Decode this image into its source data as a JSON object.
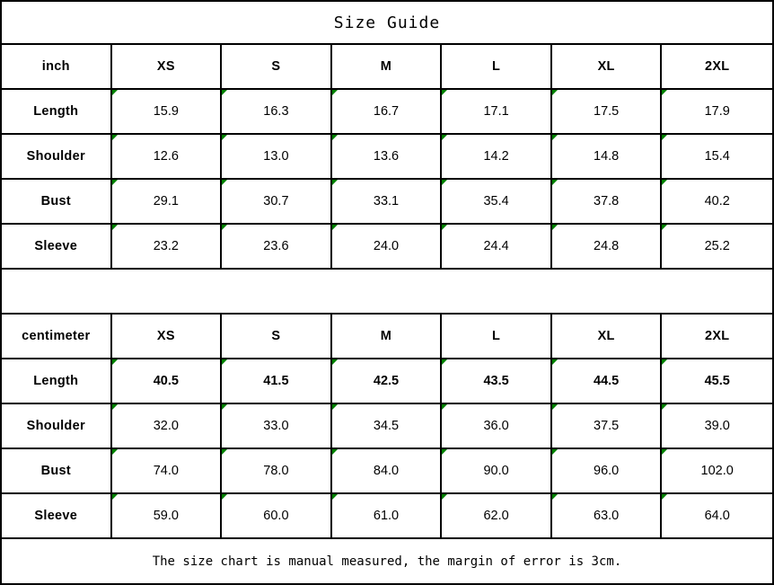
{
  "title": "Size Guide",
  "footer_note": "The size chart is manual measured, the margin of error is 3cm.",
  "colors": {
    "border": "#000000",
    "cell_flag_green": "#008000",
    "background": "#ffffff",
    "text": "#000000"
  },
  "tables": [
    {
      "unit": "inch",
      "sizes": [
        "XS",
        "S",
        "M",
        "L",
        "XL",
        "2XL"
      ],
      "rows": [
        {
          "label": "Length",
          "values": [
            "15.9",
            "16.3",
            "16.7",
            "17.1",
            "17.5",
            "17.9"
          ]
        },
        {
          "label": "Shoulder",
          "values": [
            "12.6",
            "13.0",
            "13.6",
            "14.2",
            "14.8",
            "15.4"
          ]
        },
        {
          "label": "Bust",
          "values": [
            "29.1",
            "30.7",
            "33.1",
            "35.4",
            "37.8",
            "40.2"
          ]
        },
        {
          "label": "Sleeve",
          "values": [
            "23.2",
            "23.6",
            "24.0",
            "24.4",
            "24.8",
            "25.2"
          ]
        }
      ]
    },
    {
      "unit": "centimeter",
      "sizes": [
        "XS",
        "S",
        "M",
        "L",
        "XL",
        "2XL"
      ],
      "rows": [
        {
          "label": "Length",
          "values": [
            "40.5",
            "41.5",
            "42.5",
            "43.5",
            "44.5",
            "45.5"
          ]
        },
        {
          "label": "Shoulder",
          "values": [
            "32.0",
            "33.0",
            "34.5",
            "36.0",
            "37.5",
            "39.0"
          ]
        },
        {
          "label": "Bust",
          "values": [
            "74.0",
            "78.0",
            "84.0",
            "90.0",
            "96.0",
            "102.0"
          ]
        },
        {
          "label": "Sleeve",
          "values": [
            "59.0",
            "60.0",
            "61.0",
            "62.0",
            "63.0",
            "64.0"
          ]
        }
      ]
    }
  ],
  "chart_data": [
    {
      "type": "table",
      "title": "Size Guide",
      "unit": "inch",
      "columns": [
        "inch",
        "XS",
        "S",
        "M",
        "L",
        "XL",
        "2XL"
      ],
      "rows": [
        [
          "Length",
          15.9,
          16.3,
          16.7,
          17.1,
          17.5,
          17.9
        ],
        [
          "Shoulder",
          12.6,
          13.0,
          13.6,
          14.2,
          14.8,
          15.4
        ],
        [
          "Bust",
          29.1,
          30.7,
          33.1,
          35.4,
          37.8,
          40.2
        ],
        [
          "Sleeve",
          23.2,
          23.6,
          24.0,
          24.4,
          24.8,
          25.2
        ]
      ]
    },
    {
      "type": "table",
      "title": "Size Guide",
      "unit": "centimeter",
      "columns": [
        "centimeter",
        "XS",
        "S",
        "M",
        "L",
        "XL",
        "2XL"
      ],
      "rows": [
        [
          "Length",
          40.5,
          41.5,
          42.5,
          43.5,
          44.5,
          45.5
        ],
        [
          "Shoulder",
          32.0,
          33.0,
          34.5,
          36.0,
          37.5,
          39.0
        ],
        [
          "Bust",
          74.0,
          78.0,
          84.0,
          90.0,
          96.0,
          102.0
        ],
        [
          "Sleeve",
          59.0,
          60.0,
          61.0,
          62.0,
          63.0,
          64.0
        ]
      ],
      "note": "The size chart is manual measured, the margin of error is 3cm."
    }
  ]
}
